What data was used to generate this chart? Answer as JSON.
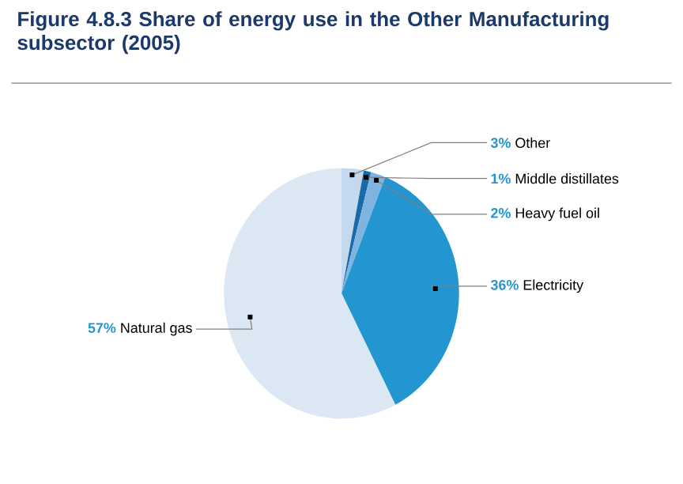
{
  "chart_data": {
    "type": "pie",
    "title": "Figure 4.8.3 Share of energy use in the Other Manufacturing subsector (2005)",
    "categories": [
      "Other",
      "Middle distillates",
      "Heavy fuel oil",
      "Electricity",
      "Natural gas"
    ],
    "values": [
      3,
      1,
      2,
      36,
      57
    ],
    "value_labels": [
      "3%",
      "1%",
      "2%",
      "36%",
      "57%"
    ],
    "colors": [
      "#c5d9ee",
      "#1a6aa8",
      "#7fb3e0",
      "#2396d1",
      "#dce7f4"
    ]
  }
}
